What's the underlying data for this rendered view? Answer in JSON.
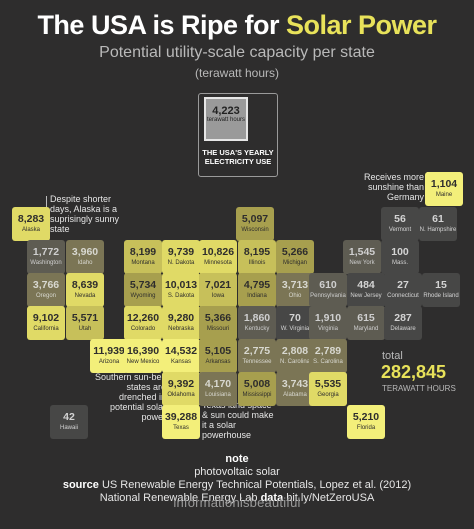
{
  "header": {
    "title_main": "The USA is Ripe for",
    "title_highlight": "Solar Power",
    "subtitle": "Potential utility-scale capacity per state",
    "unit": "(terawatt hours)"
  },
  "usa_use": {
    "value": "4,223",
    "unit": "terawatt hours",
    "label": "THE USA'S YEARLY ELECTRICITY USE"
  },
  "notes": {
    "alaska": "Despite shorter days, Alaska is a suprisingly sunny state",
    "maine": "Receives more sunshine than Germany",
    "southern": "Southern sun-belt states are drenched in potential solar power",
    "texas": "Texas land space & sun could make it a solar powerhouse"
  },
  "total": {
    "label": "total",
    "value": "282,845",
    "unit": "TERAWATT HOURS"
  },
  "footer": {
    "note_label": "note",
    "note_text": "photovoltaic solar",
    "source_label": "source",
    "source_text": "US Renewable Energy Technical Potentials, Lopez et al. (2012)",
    "source_line2": "National Renewable Energy Lab",
    "data_label": "data",
    "data_text": "bit.ly/NetZeroUSA"
  },
  "brand": "informationisbeautiful",
  "colors": {
    "background": "#2e2d2d",
    "accent": "#e8e25a"
  },
  "states": [
    {
      "id": "maine",
      "value": "1,104",
      "name": "Maine",
      "tone": "c1"
    },
    {
      "id": "alaska",
      "value": "8,283",
      "name": "Alaska",
      "tone": "c2"
    },
    {
      "id": "wisconsin",
      "value": "5,097",
      "name": "Wisconsin",
      "tone": "c4"
    },
    {
      "id": "vermont",
      "value": "56",
      "name": "Vermont",
      "tone": "c7"
    },
    {
      "id": "n-hampshire",
      "value": "61",
      "name": "N. Hampshire",
      "tone": "c7"
    },
    {
      "id": "washington",
      "value": "1,772",
      "name": "Washington",
      "tone": "c6"
    },
    {
      "id": "idaho",
      "value": "3,960",
      "name": "Idaho",
      "tone": "c5"
    },
    {
      "id": "montana",
      "value": "8,199",
      "name": "Montana",
      "tone": "c3"
    },
    {
      "id": "n-dakota",
      "value": "9,739",
      "name": "N. Dakota",
      "tone": "c2"
    },
    {
      "id": "minnesota",
      "value": "10,826",
      "name": "Minnesota",
      "tone": "c2"
    },
    {
      "id": "illinois",
      "value": "8,195",
      "name": "Illinois",
      "tone": "c3"
    },
    {
      "id": "michigan",
      "value": "5,266",
      "name": "Michigan",
      "tone": "c4"
    },
    {
      "id": "new-york",
      "value": "1,545",
      "name": "New York",
      "tone": "c6"
    },
    {
      "id": "massachusetts",
      "value": "100",
      "name": "Mass.",
      "tone": "c7"
    },
    {
      "id": "oregon",
      "value": "3,766",
      "name": "Oregon",
      "tone": "c5"
    },
    {
      "id": "nevada",
      "value": "8,639",
      "name": "Nevada",
      "tone": "c2"
    },
    {
      "id": "wyoming",
      "value": "5,734",
      "name": "Wyoming",
      "tone": "c4"
    },
    {
      "id": "s-dakota",
      "value": "10,013",
      "name": "S. Dakota",
      "tone": "c2"
    },
    {
      "id": "iowa",
      "value": "7,021",
      "name": "Iowa",
      "tone": "c3"
    },
    {
      "id": "indiana",
      "value": "4,795",
      "name": "Indiana",
      "tone": "c4"
    },
    {
      "id": "ohio",
      "value": "3,713",
      "name": "Ohio",
      "tone": "c5"
    },
    {
      "id": "pennsylvania",
      "value": "610",
      "name": "Pennsylvania",
      "tone": "c6"
    },
    {
      "id": "new-jersey",
      "value": "484",
      "name": "New Jersey",
      "tone": "c7"
    },
    {
      "id": "connecticut",
      "value": "27",
      "name": "Connecticut",
      "tone": "c7"
    },
    {
      "id": "rhode-island",
      "value": "15",
      "name": "Rhode Island",
      "tone": "c7"
    },
    {
      "id": "california",
      "value": "9,102",
      "name": "California",
      "tone": "c2"
    },
    {
      "id": "utah",
      "value": "5,571",
      "name": "Utah",
      "tone": "c3"
    },
    {
      "id": "colorado",
      "value": "12,260",
      "name": "Colorado",
      "tone": "c2"
    },
    {
      "id": "nebraska",
      "value": "9,280",
      "name": "Nebraska",
      "tone": "c2"
    },
    {
      "id": "missouri",
      "value": "5,366",
      "name": "Missouri",
      "tone": "c4"
    },
    {
      "id": "kentucky",
      "value": "1,860",
      "name": "Kentucky",
      "tone": "c6"
    },
    {
      "id": "w-virginia",
      "value": "70",
      "name": "W. Virginia",
      "tone": "c7"
    },
    {
      "id": "virginia",
      "value": "1,910",
      "name": "Virginia",
      "tone": "c6"
    },
    {
      "id": "maryland",
      "value": "615",
      "name": "Maryland",
      "tone": "c6"
    },
    {
      "id": "delaware",
      "value": "287",
      "name": "Delaware",
      "tone": "c7"
    },
    {
      "id": "arizona",
      "value": "11,939",
      "name": "Arizona",
      "tone": "c1"
    },
    {
      "id": "new-mexico",
      "value": "16,390",
      "name": "New Mexico",
      "tone": "c1"
    },
    {
      "id": "kansas",
      "value": "14,532",
      "name": "Kansas",
      "tone": "c1"
    },
    {
      "id": "arkansas",
      "value": "5,105",
      "name": "Arkansas",
      "tone": "c4"
    },
    {
      "id": "tennessee",
      "value": "2,775",
      "name": "Tennessee",
      "tone": "c5"
    },
    {
      "id": "n-carolina",
      "value": "2,808",
      "name": "N. Carolina",
      "tone": "c5"
    },
    {
      "id": "s-carolina",
      "value": "2,789",
      "name": "S. Carolina",
      "tone": "c5"
    },
    {
      "id": "oklahoma",
      "value": "9,392",
      "name": "Oklahoma",
      "tone": "c2"
    },
    {
      "id": "louisiana",
      "value": "4,170",
      "name": "Louisiana",
      "tone": "c5"
    },
    {
      "id": "mississippi",
      "value": "5,008",
      "name": "Mississippi",
      "tone": "c4"
    },
    {
      "id": "alabama",
      "value": "3,743",
      "name": "Alabama",
      "tone": "c5"
    },
    {
      "id": "georgia",
      "value": "5,535",
      "name": "Georgia",
      "tone": "c2"
    },
    {
      "id": "hawaii",
      "value": "42",
      "name": "Hawaii",
      "tone": "c7"
    },
    {
      "id": "texas",
      "value": "39,288",
      "name": "Texas",
      "tone": "c1"
    },
    {
      "id": "florida",
      "value": "5,210",
      "name": "Florida",
      "tone": "c1"
    }
  ]
}
